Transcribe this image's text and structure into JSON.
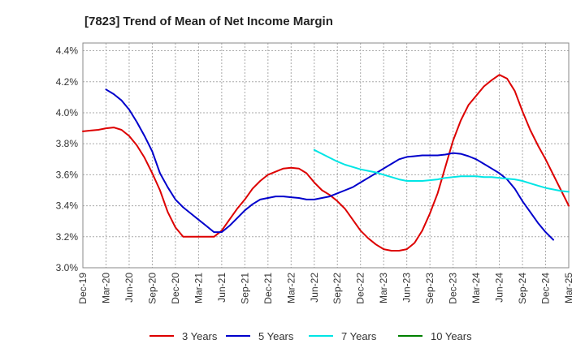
{
  "chart_data": {
    "type": "line",
    "title": "[7823]  Trend of Mean of Net Income Margin",
    "xlabel": "",
    "ylabel": "",
    "x_ticks": [
      "Dec-19",
      "Mar-20",
      "Jun-20",
      "Sep-20",
      "Dec-20",
      "Mar-21",
      "Jun-21",
      "Sep-21",
      "Dec-21",
      "Mar-22",
      "Jun-22",
      "Sep-22",
      "Dec-22",
      "Mar-23",
      "Jun-23",
      "Sep-23",
      "Dec-23",
      "Mar-24",
      "Jun-24",
      "Sep-24",
      "Dec-24",
      "Mar-25"
    ],
    "y_ticks": [
      "3.0%",
      "3.2%",
      "3.4%",
      "3.6%",
      "3.8%",
      "4.0%",
      "4.2%",
      "4.4%"
    ],
    "ylim": [
      3.0,
      4.45
    ],
    "grid": true,
    "legend_position": "bottom",
    "series": [
      {
        "name": "3 Years",
        "color": "#dd0000",
        "points": [
          [
            "Dec-19",
            3.88
          ],
          [
            "Jan-20",
            3.885
          ],
          [
            "Feb-20",
            3.89
          ],
          [
            "Mar-20",
            3.9
          ],
          [
            "Apr-20",
            3.905
          ],
          [
            "May-20",
            3.89
          ],
          [
            "Jun-20",
            3.85
          ],
          [
            "Jul-20",
            3.79
          ],
          [
            "Aug-20",
            3.71
          ],
          [
            "Sep-20",
            3.61
          ],
          [
            "Oct-20",
            3.5
          ],
          [
            "Nov-20",
            3.36
          ],
          [
            "Dec-20",
            3.26
          ],
          [
            "Jan-21",
            3.2
          ],
          [
            "Feb-21",
            3.2
          ],
          [
            "Mar-21",
            3.2
          ],
          [
            "Apr-21",
            3.2
          ],
          [
            "May-21",
            3.2
          ],
          [
            "Jun-21",
            3.24
          ],
          [
            "Jul-21",
            3.31
          ],
          [
            "Aug-21",
            3.38
          ],
          [
            "Sep-21",
            3.44
          ],
          [
            "Oct-21",
            3.51
          ],
          [
            "Nov-21",
            3.56
          ],
          [
            "Dec-21",
            3.6
          ],
          [
            "Jan-22",
            3.62
          ],
          [
            "Feb-22",
            3.64
          ],
          [
            "Mar-22",
            3.645
          ],
          [
            "Apr-22",
            3.64
          ],
          [
            "May-22",
            3.61
          ],
          [
            "Jun-22",
            3.55
          ],
          [
            "Jul-22",
            3.5
          ],
          [
            "Aug-22",
            3.47
          ],
          [
            "Sep-22",
            3.43
          ],
          [
            "Oct-22",
            3.38
          ],
          [
            "Nov-22",
            3.31
          ],
          [
            "Dec-22",
            3.24
          ],
          [
            "Jan-23",
            3.19
          ],
          [
            "Feb-23",
            3.15
          ],
          [
            "Mar-23",
            3.12
          ],
          [
            "Apr-23",
            3.11
          ],
          [
            "May-23",
            3.11
          ],
          [
            "Jun-23",
            3.12
          ],
          [
            "Jul-23",
            3.16
          ],
          [
            "Aug-23",
            3.24
          ],
          [
            "Sep-23",
            3.35
          ],
          [
            "Oct-23",
            3.48
          ],
          [
            "Nov-23",
            3.65
          ],
          [
            "Dec-23",
            3.82
          ],
          [
            "Jan-24",
            3.95
          ],
          [
            "Feb-24",
            4.05
          ],
          [
            "Mar-24",
            4.11
          ],
          [
            "Apr-24",
            4.17
          ],
          [
            "May-24",
            4.21
          ],
          [
            "Jun-24",
            4.245
          ],
          [
            "Jul-24",
            4.22
          ],
          [
            "Aug-24",
            4.14
          ],
          [
            "Sep-24",
            4.01
          ],
          [
            "Oct-24",
            3.89
          ],
          [
            "Nov-24",
            3.79
          ],
          [
            "Dec-24",
            3.7
          ],
          [
            "Jan-25",
            3.6
          ],
          [
            "Feb-25",
            3.5
          ],
          [
            "Mar-25",
            3.4
          ]
        ]
      },
      {
        "name": "5 Years",
        "color": "#0000cc",
        "points": [
          [
            "Mar-20",
            4.15
          ],
          [
            "Apr-20",
            4.12
          ],
          [
            "May-20",
            4.08
          ],
          [
            "Jun-20",
            4.02
          ],
          [
            "Jul-20",
            3.94
          ],
          [
            "Aug-20",
            3.85
          ],
          [
            "Sep-20",
            3.75
          ],
          [
            "Oct-20",
            3.61
          ],
          [
            "Nov-20",
            3.52
          ],
          [
            "Dec-20",
            3.44
          ],
          [
            "Jan-21",
            3.39
          ],
          [
            "Feb-21",
            3.35
          ],
          [
            "Mar-21",
            3.31
          ],
          [
            "Apr-21",
            3.27
          ],
          [
            "May-21",
            3.23
          ],
          [
            "Jun-21",
            3.23
          ],
          [
            "Jul-21",
            3.27
          ],
          [
            "Aug-21",
            3.32
          ],
          [
            "Sep-21",
            3.37
          ],
          [
            "Oct-21",
            3.41
          ],
          [
            "Nov-21",
            3.44
          ],
          [
            "Dec-21",
            3.45
          ],
          [
            "Jan-22",
            3.46
          ],
          [
            "Feb-22",
            3.46
          ],
          [
            "Mar-22",
            3.455
          ],
          [
            "Apr-22",
            3.45
          ],
          [
            "May-22",
            3.44
          ],
          [
            "Jun-22",
            3.44
          ],
          [
            "Jul-22",
            3.45
          ],
          [
            "Aug-22",
            3.46
          ],
          [
            "Sep-22",
            3.48
          ],
          [
            "Oct-22",
            3.5
          ],
          [
            "Nov-22",
            3.52
          ],
          [
            "Dec-22",
            3.55
          ],
          [
            "Jan-23",
            3.58
          ],
          [
            "Feb-23",
            3.61
          ],
          [
            "Mar-23",
            3.64
          ],
          [
            "Apr-23",
            3.67
          ],
          [
            "May-23",
            3.7
          ],
          [
            "Jun-23",
            3.715
          ],
          [
            "Jul-23",
            3.72
          ],
          [
            "Aug-23",
            3.725
          ],
          [
            "Sep-23",
            3.725
          ],
          [
            "Oct-23",
            3.725
          ],
          [
            "Nov-23",
            3.73
          ],
          [
            "Dec-23",
            3.74
          ],
          [
            "Jan-24",
            3.735
          ],
          [
            "Feb-24",
            3.72
          ],
          [
            "Mar-24",
            3.7
          ],
          [
            "Apr-24",
            3.67
          ],
          [
            "May-24",
            3.64
          ],
          [
            "Jun-24",
            3.61
          ],
          [
            "Jul-24",
            3.57
          ],
          [
            "Aug-24",
            3.51
          ],
          [
            "Sep-24",
            3.43
          ],
          [
            "Oct-24",
            3.36
          ],
          [
            "Nov-24",
            3.29
          ],
          [
            "Dec-24",
            3.23
          ],
          [
            "Jan-25",
            3.18
          ]
        ]
      },
      {
        "name": "7 Years",
        "color": "#00e5e5",
        "points": [
          [
            "Jun-22",
            3.76
          ],
          [
            "Jul-22",
            3.735
          ],
          [
            "Aug-22",
            3.71
          ],
          [
            "Sep-22",
            3.685
          ],
          [
            "Oct-22",
            3.665
          ],
          [
            "Nov-22",
            3.65
          ],
          [
            "Dec-22",
            3.635
          ],
          [
            "Jan-23",
            3.625
          ],
          [
            "Feb-23",
            3.615
          ],
          [
            "Mar-23",
            3.6
          ],
          [
            "Apr-23",
            3.585
          ],
          [
            "May-23",
            3.57
          ],
          [
            "Jun-23",
            3.56
          ],
          [
            "Jul-23",
            3.56
          ],
          [
            "Aug-23",
            3.56
          ],
          [
            "Sep-23",
            3.565
          ],
          [
            "Oct-23",
            3.57
          ],
          [
            "Nov-23",
            3.58
          ],
          [
            "Dec-23",
            3.585
          ],
          [
            "Jan-24",
            3.59
          ],
          [
            "Feb-24",
            3.59
          ],
          [
            "Mar-24",
            3.59
          ],
          [
            "Apr-24",
            3.585
          ],
          [
            "May-24",
            3.585
          ],
          [
            "Jun-24",
            3.58
          ],
          [
            "Jul-24",
            3.575
          ],
          [
            "Aug-24",
            3.57
          ],
          [
            "Sep-24",
            3.56
          ],
          [
            "Oct-24",
            3.545
          ],
          [
            "Nov-24",
            3.53
          ],
          [
            "Dec-24",
            3.515
          ],
          [
            "Jan-25",
            3.505
          ],
          [
            "Feb-25",
            3.495
          ],
          [
            "Mar-25",
            3.49
          ]
        ]
      },
      {
        "name": "10 Years",
        "color": "#008000",
        "points": []
      }
    ]
  }
}
